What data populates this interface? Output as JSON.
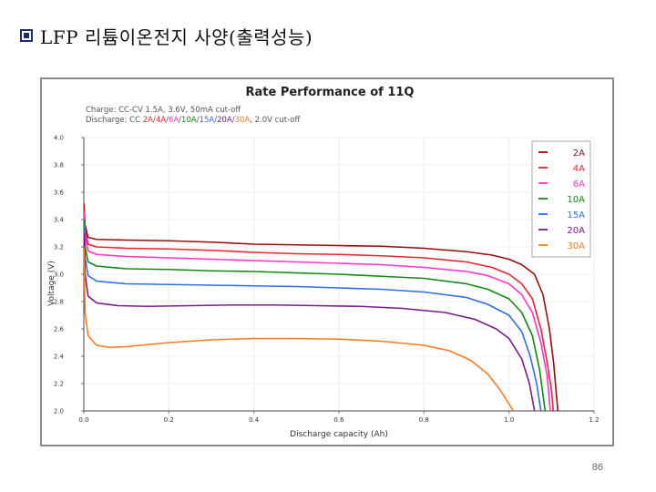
{
  "slide": {
    "title": "LFP 리튬이온전지 사양(출력성능)",
    "bullet_icon": "hollow-square-bullet-icon",
    "page_number": "86"
  },
  "chart_data": {
    "type": "line",
    "title": "Rate Performance of 11Q",
    "subtitle_lines": [
      [
        {
          "text": "Charge: CC-CV 1.5A, 3.6V, 50mA cut-off",
          "color": "#555555"
        }
      ],
      [
        {
          "text": "Discharge: CC ",
          "color": "#555555"
        },
        {
          "text": "2A",
          "color": "#c0392b"
        },
        {
          "text": "/",
          "color": "#555555"
        },
        {
          "text": "4A",
          "color": "#e8262f"
        },
        {
          "text": "/",
          "color": "#555555"
        },
        {
          "text": "6A",
          "color": "#ff33cc"
        },
        {
          "text": "/",
          "color": "#555555"
        },
        {
          "text": "10A",
          "color": "#118a11"
        },
        {
          "text": "/",
          "color": "#555555"
        },
        {
          "text": "15A",
          "color": "#2b6ef0"
        },
        {
          "text": "/",
          "color": "#555555"
        },
        {
          "text": "20A",
          "color": "#7a1a8a"
        },
        {
          "text": "/",
          "color": "#555555"
        },
        {
          "text": "30A",
          "color": "#ff7a1a"
        },
        {
          "text": ", 2.0V cut-off",
          "color": "#555555"
        }
      ]
    ],
    "xlabel": "Discharge capacity (Ah)",
    "ylabel": "Voltage (V)",
    "xlim": [
      0.0,
      1.2
    ],
    "ylim": [
      2.0,
      4.0
    ],
    "xticks": [
      "0.0",
      "0.2",
      "0.4",
      "0.6",
      "0.8",
      "1.0",
      "1.2"
    ],
    "yticks": [
      "2.0",
      "2.2",
      "2.4",
      "2.6",
      "2.8",
      "3.0",
      "3.2",
      "3.4",
      "3.6",
      "3.8",
      "4.0"
    ],
    "legend_position": "top-right",
    "series": [
      {
        "name": "2A",
        "color": "#9b0d0d",
        "points": [
          [
            0.0,
            3.52
          ],
          [
            0.003,
            3.36
          ],
          [
            0.01,
            3.27
          ],
          [
            0.03,
            3.255
          ],
          [
            0.1,
            3.25
          ],
          [
            0.2,
            3.245
          ],
          [
            0.3,
            3.235
          ],
          [
            0.4,
            3.22
          ],
          [
            0.5,
            3.215
          ],
          [
            0.6,
            3.21
          ],
          [
            0.7,
            3.205
          ],
          [
            0.8,
            3.19
          ],
          [
            0.9,
            3.165
          ],
          [
            0.96,
            3.14
          ],
          [
            1.0,
            3.11
          ],
          [
            1.03,
            3.07
          ],
          [
            1.06,
            3.0
          ],
          [
            1.08,
            2.85
          ],
          [
            1.095,
            2.6
          ],
          [
            1.105,
            2.35
          ],
          [
            1.112,
            2.1
          ],
          [
            1.115,
            2.0
          ]
        ]
      },
      {
        "name": "4A",
        "color": "#e8262f",
        "points": [
          [
            0.0,
            3.48
          ],
          [
            0.003,
            3.32
          ],
          [
            0.01,
            3.22
          ],
          [
            0.03,
            3.2
          ],
          [
            0.1,
            3.19
          ],
          [
            0.2,
            3.185
          ],
          [
            0.3,
            3.175
          ],
          [
            0.4,
            3.16
          ],
          [
            0.5,
            3.15
          ],
          [
            0.6,
            3.145
          ],
          [
            0.7,
            3.135
          ],
          [
            0.8,
            3.12
          ],
          [
            0.9,
            3.09
          ],
          [
            0.96,
            3.05
          ],
          [
            1.0,
            3.0
          ],
          [
            1.03,
            2.93
          ],
          [
            1.055,
            2.82
          ],
          [
            1.075,
            2.6
          ],
          [
            1.09,
            2.35
          ],
          [
            1.1,
            2.15
          ],
          [
            1.104,
            2.0
          ]
        ]
      },
      {
        "name": "6A",
        "color": "#ff33cc",
        "points": [
          [
            0.0,
            3.45
          ],
          [
            0.003,
            3.28
          ],
          [
            0.01,
            3.17
          ],
          [
            0.03,
            3.145
          ],
          [
            0.1,
            3.13
          ],
          [
            0.2,
            3.12
          ],
          [
            0.3,
            3.11
          ],
          [
            0.4,
            3.1
          ],
          [
            0.5,
            3.09
          ],
          [
            0.6,
            3.08
          ],
          [
            0.7,
            3.07
          ],
          [
            0.8,
            3.05
          ],
          [
            0.9,
            3.02
          ],
          [
            0.95,
            2.99
          ],
          [
            1.0,
            2.93
          ],
          [
            1.03,
            2.85
          ],
          [
            1.055,
            2.72
          ],
          [
            1.075,
            2.5
          ],
          [
            1.09,
            2.25
          ],
          [
            1.097,
            2.0
          ]
        ]
      },
      {
        "name": "10A",
        "color": "#118a11",
        "points": [
          [
            0.0,
            3.4
          ],
          [
            0.003,
            3.2
          ],
          [
            0.01,
            3.09
          ],
          [
            0.03,
            3.06
          ],
          [
            0.1,
            3.04
          ],
          [
            0.2,
            3.035
          ],
          [
            0.3,
            3.025
          ],
          [
            0.4,
            3.02
          ],
          [
            0.5,
            3.01
          ],
          [
            0.6,
            3.0
          ],
          [
            0.7,
            2.985
          ],
          [
            0.8,
            2.97
          ],
          [
            0.9,
            2.93
          ],
          [
            0.95,
            2.89
          ],
          [
            1.0,
            2.82
          ],
          [
            1.03,
            2.72
          ],
          [
            1.055,
            2.55
          ],
          [
            1.072,
            2.3
          ],
          [
            1.085,
            2.0
          ]
        ]
      },
      {
        "name": "15A",
        "color": "#2b6ef0",
        "points": [
          [
            0.0,
            3.35
          ],
          [
            0.003,
            3.12
          ],
          [
            0.01,
            2.99
          ],
          [
            0.03,
            2.95
          ],
          [
            0.1,
            2.93
          ],
          [
            0.2,
            2.925
          ],
          [
            0.3,
            2.92
          ],
          [
            0.4,
            2.915
          ],
          [
            0.5,
            2.91
          ],
          [
            0.6,
            2.9
          ],
          [
            0.7,
            2.89
          ],
          [
            0.8,
            2.87
          ],
          [
            0.9,
            2.83
          ],
          [
            0.95,
            2.78
          ],
          [
            1.0,
            2.7
          ],
          [
            1.03,
            2.58
          ],
          [
            1.05,
            2.4
          ],
          [
            1.065,
            2.2
          ],
          [
            1.075,
            2.0
          ]
        ]
      },
      {
        "name": "20A",
        "color": "#7a1a8a",
        "points": [
          [
            0.0,
            3.3
          ],
          [
            0.003,
            3.0
          ],
          [
            0.01,
            2.84
          ],
          [
            0.03,
            2.79
          ],
          [
            0.08,
            2.77
          ],
          [
            0.15,
            2.765
          ],
          [
            0.25,
            2.77
          ],
          [
            0.35,
            2.775
          ],
          [
            0.45,
            2.775
          ],
          [
            0.55,
            2.77
          ],
          [
            0.65,
            2.765
          ],
          [
            0.75,
            2.75
          ],
          [
            0.85,
            2.72
          ],
          [
            0.92,
            2.67
          ],
          [
            0.97,
            2.6
          ],
          [
            1.0,
            2.53
          ],
          [
            1.03,
            2.38
          ],
          [
            1.048,
            2.2
          ],
          [
            1.06,
            2.0
          ]
        ]
      },
      {
        "name": "30A",
        "color": "#ff7a1a",
        "points": [
          [
            0.0,
            3.2
          ],
          [
            0.003,
            2.72
          ],
          [
            0.01,
            2.55
          ],
          [
            0.03,
            2.48
          ],
          [
            0.06,
            2.465
          ],
          [
            0.1,
            2.47
          ],
          [
            0.2,
            2.5
          ],
          [
            0.3,
            2.52
          ],
          [
            0.4,
            2.53
          ],
          [
            0.5,
            2.53
          ],
          [
            0.6,
            2.525
          ],
          [
            0.7,
            2.51
          ],
          [
            0.8,
            2.48
          ],
          [
            0.86,
            2.44
          ],
          [
            0.91,
            2.37
          ],
          [
            0.95,
            2.27
          ],
          [
            0.98,
            2.15
          ],
          [
            1.0,
            2.05
          ],
          [
            1.01,
            2.0
          ]
        ]
      }
    ]
  }
}
